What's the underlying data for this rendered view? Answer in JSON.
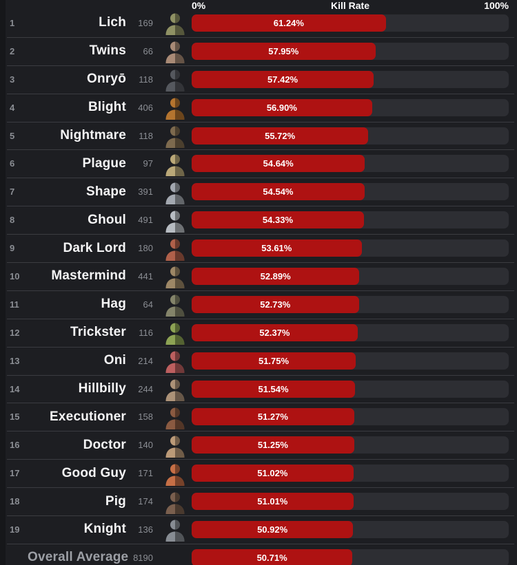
{
  "header": {
    "left_label": "0%",
    "title": "Kill Rate",
    "right_label": "100%"
  },
  "colors": {
    "background": "#1d1e22",
    "edge_strip": "#16171a",
    "row_divider": "#3b3c41",
    "bar_track": "#2d2e33",
    "bar_fill": "#ae1212",
    "name_text": "#f4f4f5",
    "muted_text": "#8b8e94",
    "overall_text": "#9c9fa5"
  },
  "chart_data": {
    "type": "bar",
    "orientation": "horizontal",
    "title": "Kill Rate",
    "xlim": [
      0,
      100
    ],
    "x_tick_labels": [
      "0%",
      "100%"
    ],
    "value_unit": "%",
    "columns": [
      "rank",
      "killer",
      "matches",
      "kill_rate"
    ],
    "rows": [
      {
        "rank": 1,
        "name": "Lich",
        "matches": 169,
        "kill_rate": 61.24,
        "icon": "lich-portrait",
        "tint": "#8f9164"
      },
      {
        "rank": 2,
        "name": "Twins",
        "matches": 66,
        "kill_rate": 57.95,
        "icon": "twins-portrait",
        "tint": "#a98a76"
      },
      {
        "rank": 3,
        "name": "Onryō",
        "matches": 118,
        "kill_rate": 57.42,
        "icon": "onryo-portrait",
        "tint": "#55585e"
      },
      {
        "rank": 4,
        "name": "Blight",
        "matches": 406,
        "kill_rate": 56.9,
        "icon": "blight-portrait",
        "tint": "#b4742f"
      },
      {
        "rank": 5,
        "name": "Nightmare",
        "matches": 118,
        "kill_rate": 55.72,
        "icon": "nightmare-portrait",
        "tint": "#7d6a4e"
      },
      {
        "rank": 6,
        "name": "Plague",
        "matches": 97,
        "kill_rate": 54.64,
        "icon": "plague-portrait",
        "tint": "#baa878"
      },
      {
        "rank": 7,
        "name": "Shape",
        "matches": 391,
        "kill_rate": 54.54,
        "icon": "shape-portrait",
        "tint": "#a3a8b0"
      },
      {
        "rank": 8,
        "name": "Ghoul",
        "matches": 491,
        "kill_rate": 54.33,
        "icon": "ghoul-portrait",
        "tint": "#b7bcc2"
      },
      {
        "rank": 9,
        "name": "Dark Lord",
        "matches": 180,
        "kill_rate": 53.61,
        "icon": "dark-lord-portrait",
        "tint": "#b0604a"
      },
      {
        "rank": 10,
        "name": "Mastermind",
        "matches": 441,
        "kill_rate": 52.89,
        "icon": "mastermind-portrait",
        "tint": "#9d8766"
      },
      {
        "rank": 11,
        "name": "Hag",
        "matches": 64,
        "kill_rate": 52.73,
        "icon": "hag-portrait",
        "tint": "#84846a"
      },
      {
        "rank": 12,
        "name": "Trickster",
        "matches": 116,
        "kill_rate": 52.37,
        "icon": "trickster-portrait",
        "tint": "#8da354"
      },
      {
        "rank": 13,
        "name": "Oni",
        "matches": 214,
        "kill_rate": 51.75,
        "icon": "oni-portrait",
        "tint": "#bd5f5f"
      },
      {
        "rank": 14,
        "name": "Hillbilly",
        "matches": 244,
        "kill_rate": 51.54,
        "icon": "hillbilly-portrait",
        "tint": "#ac9278"
      },
      {
        "rank": 15,
        "name": "Executioner",
        "matches": 158,
        "kill_rate": 51.27,
        "icon": "executioner-portrait",
        "tint": "#8a5a41"
      },
      {
        "rank": 16,
        "name": "Doctor",
        "matches": 140,
        "kill_rate": 51.25,
        "icon": "doctor-portrait",
        "tint": "#bb9a78"
      },
      {
        "rank": 17,
        "name": "Good Guy",
        "matches": 171,
        "kill_rate": 51.02,
        "icon": "good-guy-portrait",
        "tint": "#c66f46"
      },
      {
        "rank": 18,
        "name": "Pig",
        "matches": 174,
        "kill_rate": 51.01,
        "icon": "pig-portrait",
        "tint": "#7a5f4e"
      },
      {
        "rank": 19,
        "name": "Knight",
        "matches": 136,
        "kill_rate": 50.92,
        "icon": "knight-portrait",
        "tint": "#878c93"
      }
    ],
    "overall": {
      "name": "Overall Average",
      "matches": 8190,
      "kill_rate": 50.71
    }
  }
}
